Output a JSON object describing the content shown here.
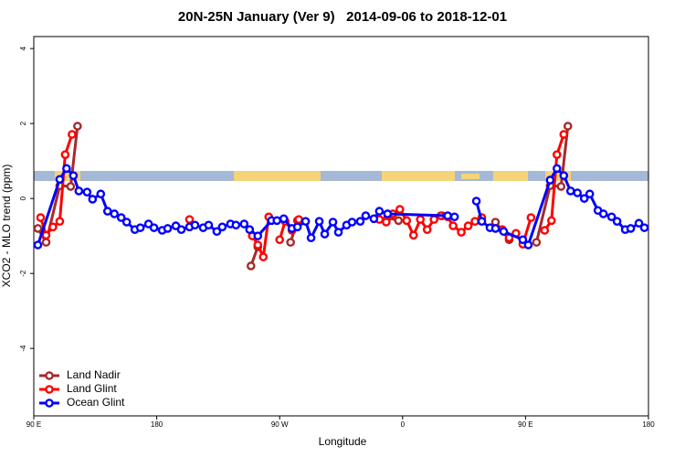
{
  "chart_data": {
    "type": "line",
    "title": "20N-25N January (Ver 9)   2014-09-06 to 2018-12-01",
    "xlabel": "Longitude",
    "ylabel": "XCO2 - MLO trend (ppm)",
    "xlim": [
      90,
      540
    ],
    "xticks": [
      {
        "value": 90,
        "label": "90 E"
      },
      180,
      {
        "value": 270,
        "label": "90 W"
      },
      {
        "value": 360,
        "label": "0"
      },
      {
        "value": 450,
        "label": "90 E"
      },
      {
        "value": 540,
        "label": "180"
      }
    ],
    "ylim": [
      -5.8,
      4.32
    ],
    "yticks": [
      -4,
      -2,
      0,
      2,
      4
    ],
    "legend": "bottomleft",
    "series": [
      {
        "name": "Land Nadir",
        "color": "#a52a2a",
        "x": [
          93,
          99,
          109,
          117,
          122,
          null,
          249,
          254,
          null,
          278,
          283,
          null,
          349,
          357,
          null,
          389,
          null,
          428,
          438,
          null,
          458,
          468,
          476,
          481
        ],
        "values": [
          -0.8,
          -1.17,
          0.34,
          0.32,
          1.93,
          null,
          -1.8,
          -1.29,
          null,
          -1.17,
          -0.59,
          null,
          -0.51,
          -0.59,
          null,
          -0.46,
          null,
          -0.63,
          -1.1,
          null,
          -1.17,
          0.34,
          0.32,
          1.93
        ]
      },
      {
        "name": "Land Glint",
        "color": "#ff0000",
        "x": [
          95,
          99,
          104,
          109,
          113,
          118,
          null,
          204,
          null,
          250,
          254,
          258,
          262,
          null,
          270,
          274,
          279,
          284,
          null,
          343,
          348,
          353,
          358,
          363,
          368,
          373,
          378,
          383,
          388,
          393,
          397,
          403,
          408,
          413,
          418,
          null,
          433,
          438,
          443,
          448,
          454,
          null,
          464,
          469,
          473,
          478
        ],
        "values": [
          -0.51,
          -0.98,
          -0.76,
          -0.61,
          1.17,
          1.71,
          null,
          -0.56,
          null,
          -1.0,
          -1.24,
          -1.56,
          -0.49,
          null,
          -1.1,
          -0.61,
          -0.85,
          -0.56,
          null,
          -0.56,
          -0.63,
          -0.41,
          -0.29,
          -0.59,
          -0.98,
          -0.56,
          -0.83,
          -0.56,
          -0.46,
          -0.49,
          -0.73,
          -0.9,
          -0.73,
          -0.61,
          -0.51,
          null,
          -0.83,
          -1.05,
          -0.93,
          -1.22,
          -0.51,
          null,
          -0.85,
          -0.59,
          1.17,
          1.71
        ]
      },
      {
        "name": "Ocean Glint",
        "color": "#0000ff",
        "x": [
          93,
          109,
          114,
          119,
          123,
          129,
          133,
          139,
          144,
          149,
          154,
          158,
          164,
          168,
          174,
          178,
          184,
          188,
          194,
          198,
          204,
          208,
          214,
          218,
          224,
          228,
          234,
          238,
          244,
          248,
          254,
          264,
          268,
          273,
          279,
          283,
          289,
          293,
          299,
          303,
          309,
          313,
          319,
          323,
          329,
          333,
          339,
          343,
          349,
          393,
          398,
          null,
          414,
          418,
          424,
          428,
          434,
          448,
          452,
          468,
          473,
          478,
          483,
          488,
          493,
          497,
          503,
          507,
          513,
          517,
          523,
          527,
          533,
          537
        ],
        "values": [
          -1.24,
          0.51,
          0.8,
          0.61,
          0.2,
          0.17,
          -0.02,
          0.12,
          -0.34,
          -0.41,
          -0.51,
          -0.63,
          -0.83,
          -0.78,
          -0.68,
          -0.78,
          -0.85,
          -0.8,
          -0.73,
          -0.83,
          -0.76,
          -0.71,
          -0.78,
          -0.71,
          -0.88,
          -0.76,
          -0.68,
          -0.71,
          -0.68,
          -0.83,
          -1.0,
          -0.59,
          -0.59,
          -0.54,
          -0.8,
          -0.76,
          -0.61,
          -1.05,
          -0.61,
          -0.95,
          -0.63,
          -0.9,
          -0.71,
          -0.63,
          -0.61,
          -0.46,
          -0.54,
          -0.34,
          -0.41,
          -0.46,
          -0.49,
          null,
          -0.07,
          -0.61,
          -0.78,
          -0.8,
          -0.88,
          -1.1,
          -1.24,
          0.49,
          0.8,
          0.61,
          0.2,
          0.15,
          0.0,
          0.12,
          -0.32,
          -0.41,
          -0.49,
          -0.61,
          -0.83,
          -0.8,
          -0.66,
          -0.78
        ]
      }
    ]
  }
}
